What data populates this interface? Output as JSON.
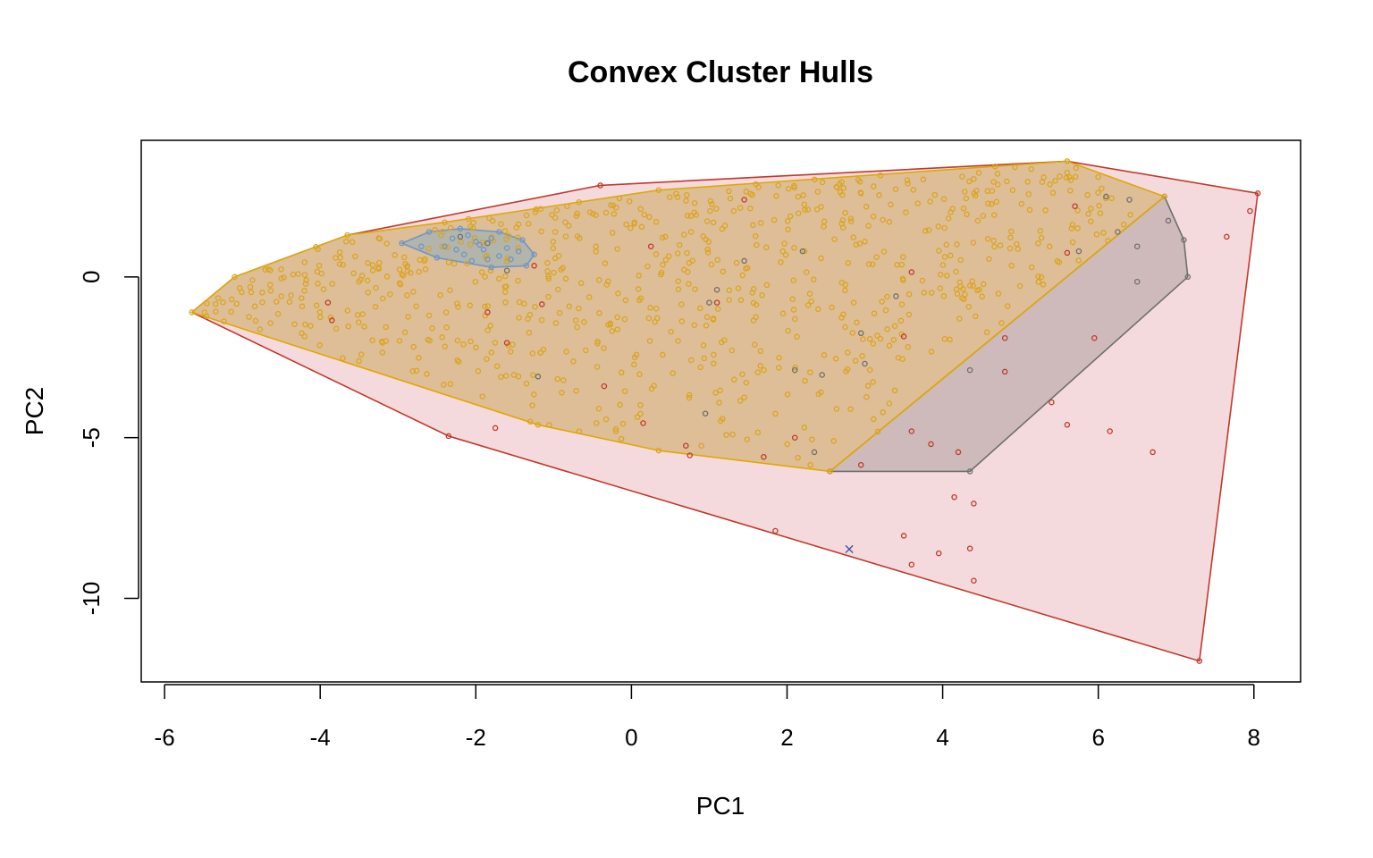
{
  "chart_data": {
    "type": "scatter",
    "title": "Convex Cluster Hulls",
    "xlabel": "PC1",
    "ylabel": "PC2",
    "xlim": [
      -6.3,
      8.6
    ],
    "ylim": [
      -12.6,
      4.25
    ],
    "x_ticks": [
      -6,
      -4,
      -2,
      0,
      2,
      4,
      6,
      8
    ],
    "x_tick_labels": [
      "-6",
      "-4",
      "-2",
      "0",
      "2",
      "4",
      "6",
      "8"
    ],
    "y_ticks": [
      0,
      -5,
      -10
    ],
    "y_tick_labels": [
      "0",
      "-5",
      "-10"
    ],
    "grid": false,
    "legend": "none",
    "colors": {
      "red": "#c0392b",
      "red_fill": "#f2d4d6",
      "orange": "#daa520",
      "orange_stroke": "#e0a800",
      "orange_fill": "#d9b88a",
      "gray": "#6e6e6e",
      "gray_fill": "#b0a0a0",
      "blue": "#6f95c8",
      "blue_fill": "#9fb0b3",
      "marker": "#3b4fa8"
    },
    "series": [
      {
        "color": "#c0392b",
        "hull": [
          [
            -5.65,
            -1.1
          ],
          [
            -2.35,
            -4.95
          ],
          [
            7.3,
            -11.95
          ],
          [
            8.05,
            2.6
          ],
          [
            5.6,
            3.6
          ],
          [
            -0.4,
            2.85
          ],
          [
            -3.65,
            1.3
          ],
          [
            -5.1,
            0
          ]
        ],
        "points": [
          [
            -0.4,
            2.85
          ],
          [
            1.45,
            2.4
          ],
          [
            5.7,
            2.2
          ],
          [
            7.65,
            1.25
          ],
          [
            7.95,
            2.05
          ],
          [
            8.05,
            2.6
          ],
          [
            5.6,
            0.75
          ],
          [
            3.6,
            0.15
          ],
          [
            1.1,
            -0.8
          ],
          [
            -1.15,
            -0.85
          ],
          [
            -1.85,
            -1.1
          ],
          [
            -1.6,
            -2.05
          ],
          [
            -3.9,
            -0.8
          ],
          [
            -3.85,
            -1.35
          ],
          [
            3.5,
            -1.85
          ],
          [
            4.8,
            -1.9
          ],
          [
            5.95,
            -1.9
          ],
          [
            4.8,
            -2.95
          ],
          [
            -0.35,
            -3.4
          ],
          [
            0.15,
            -4.55
          ],
          [
            5.4,
            -3.9
          ],
          [
            5.6,
            -4.6
          ],
          [
            6.15,
            -4.8
          ],
          [
            6.7,
            -5.45
          ],
          [
            2.1,
            -5
          ],
          [
            3.6,
            -4.8
          ],
          [
            3.85,
            -5.2
          ],
          [
            4.2,
            -5.45
          ],
          [
            0.7,
            -5.25
          ],
          [
            0.75,
            -5.55
          ],
          [
            1.7,
            -5.6
          ],
          [
            2.95,
            -5.85
          ],
          [
            4.15,
            -6.85
          ],
          [
            4.4,
            -7.05
          ],
          [
            -1.75,
            -4.7
          ],
          [
            -2.35,
            -4.95
          ],
          [
            3.5,
            -8.05
          ],
          [
            4.35,
            -8.45
          ],
          [
            3.95,
            -8.6
          ],
          [
            1.85,
            -7.9
          ],
          [
            3.6,
            -8.95
          ],
          [
            4.4,
            -9.45
          ],
          [
            7.3,
            -11.95
          ],
          [
            -1.25,
            0.35
          ],
          [
            0.25,
            0.95
          ]
        ]
      },
      {
        "color": "#6e6e6e",
        "hull": [
          [
            7.15,
            0
          ],
          [
            7.1,
            1.15
          ],
          [
            6.85,
            2.5
          ],
          [
            2.55,
            -6.05
          ],
          [
            4.35,
            -6.05
          ]
        ],
        "points": [
          [
            6.1,
            2.5
          ],
          [
            6.4,
            2.4
          ],
          [
            6.85,
            2.5
          ],
          [
            6.9,
            1.75
          ],
          [
            7.1,
            1.15
          ],
          [
            7.15,
            0
          ],
          [
            6.5,
            0.95
          ],
          [
            6.5,
            -0.15
          ],
          [
            6.25,
            1.4
          ],
          [
            5.75,
            0.8
          ],
          [
            3.4,
            -0.6
          ],
          [
            1.45,
            0.5
          ],
          [
            1.1,
            -0.4
          ],
          [
            2.95,
            -1.75
          ],
          [
            3.0,
            -2.7
          ],
          [
            2.1,
            -2.9
          ],
          [
            2.45,
            -3.05
          ],
          [
            4.35,
            -2.9
          ],
          [
            -1.2,
            -3.1
          ],
          [
            0.95,
            -4.25
          ],
          [
            1.0,
            -0.8
          ],
          [
            2.35,
            -5.45
          ],
          [
            4.35,
            -6.05
          ],
          [
            2.55,
            -6.05
          ],
          [
            2.2,
            0.8
          ],
          [
            -2.2,
            1.25
          ],
          [
            -1.85,
            1.05
          ],
          [
            -1.6,
            0.2
          ]
        ]
      },
      {
        "color": "#daa520",
        "hull": [
          [
            -5.65,
            -1.1
          ],
          [
            -5.1,
            0
          ],
          [
            -3.65,
            1.3
          ],
          [
            -2.4,
            1.7
          ],
          [
            0.35,
            2.7
          ],
          [
            5.6,
            3.6
          ],
          [
            6.85,
            2.5
          ],
          [
            2.55,
            -6.05
          ],
          [
            0.35,
            -5.4
          ],
          [
            -1.2,
            -4.6
          ]
        ],
        "cloud": {
          "n": 750,
          "seed": 7,
          "x_range": [
            -5.6,
            6.8
          ],
          "y_range": [
            -6.0,
            3.6
          ]
        },
        "points": [
          [
            -3.65,
            1.3
          ],
          [
            -2.4,
            1.7
          ],
          [
            0.35,
            2.7
          ],
          [
            5.6,
            3.6
          ],
          [
            6.85,
            2.5
          ],
          [
            2.55,
            -6.05
          ],
          [
            0.35,
            -5.4
          ],
          [
            -1.2,
            -4.6
          ],
          [
            -5.1,
            0
          ],
          [
            -5.65,
            -1.1
          ],
          [
            5.6,
            3.25
          ],
          [
            5.3,
            3.1
          ],
          [
            4.9,
            2.7
          ],
          [
            4.4,
            3.05
          ],
          [
            3.9,
            2.55
          ],
          [
            2.95,
            2.6
          ],
          [
            2.6,
            -5.1
          ],
          [
            2.3,
            -5.85
          ],
          [
            3.0,
            1.1
          ],
          [
            2.25,
            0.15
          ],
          [
            1.6,
            -1.25
          ],
          [
            1.45,
            -3.75
          ],
          [
            -1.8,
            -2.35
          ],
          [
            -2.6,
            -1.2
          ],
          [
            -4.5,
            -0.05
          ],
          [
            -4.5,
            -0.6
          ],
          [
            -4.2,
            -1.85
          ],
          [
            -3.75,
            0.4
          ],
          [
            -3.2,
            -2.05
          ],
          [
            -3.2,
            -2.35
          ],
          [
            -1.3,
            -4.5
          ],
          [
            -0.45,
            -4.55
          ],
          [
            0.9,
            -5.25
          ],
          [
            1.3,
            -4.9
          ],
          [
            -0.2,
            -4.8
          ]
        ]
      },
      {
        "color": "#6f95c8",
        "hull": [
          [
            -2.95,
            1.05
          ],
          [
            -2.6,
            1.4
          ],
          [
            -2.2,
            1.5
          ],
          [
            -1.7,
            1.4
          ],
          [
            -1.4,
            1.15
          ],
          [
            -1.25,
            0.7
          ],
          [
            -1.35,
            0.35
          ],
          [
            -1.8,
            0.3
          ],
          [
            -2.5,
            0.6
          ]
        ],
        "points": [
          [
            -2.95,
            1.05
          ],
          [
            -2.6,
            1.4
          ],
          [
            -2.2,
            1.5
          ],
          [
            -1.7,
            1.4
          ],
          [
            -1.4,
            1.15
          ],
          [
            -1.25,
            0.7
          ],
          [
            -1.35,
            0.35
          ],
          [
            -1.8,
            0.3
          ],
          [
            -2.5,
            0.6
          ],
          [
            -2.4,
            0.95
          ],
          [
            -2.15,
            0.7
          ],
          [
            -2.0,
            1.1
          ],
          [
            -1.9,
            0.85
          ],
          [
            -1.6,
            0.9
          ],
          [
            -1.8,
            1.2
          ],
          [
            -2.1,
            1.3
          ],
          [
            -1.55,
            0.55
          ],
          [
            -2.3,
            1.2
          ],
          [
            -2.05,
            0.5
          ],
          [
            -1.7,
            0.65
          ],
          [
            -2.7,
            0.95
          ],
          [
            -1.95,
            1.0
          ],
          [
            -1.45,
            0.8
          ],
          [
            -2.25,
            0.85
          ],
          [
            -1.85,
            0.55
          ]
        ]
      }
    ],
    "annotations": [
      {
        "symbol": "×",
        "x": 2.8,
        "y": -8.45,
        "color": "#3b4fa8"
      }
    ]
  }
}
